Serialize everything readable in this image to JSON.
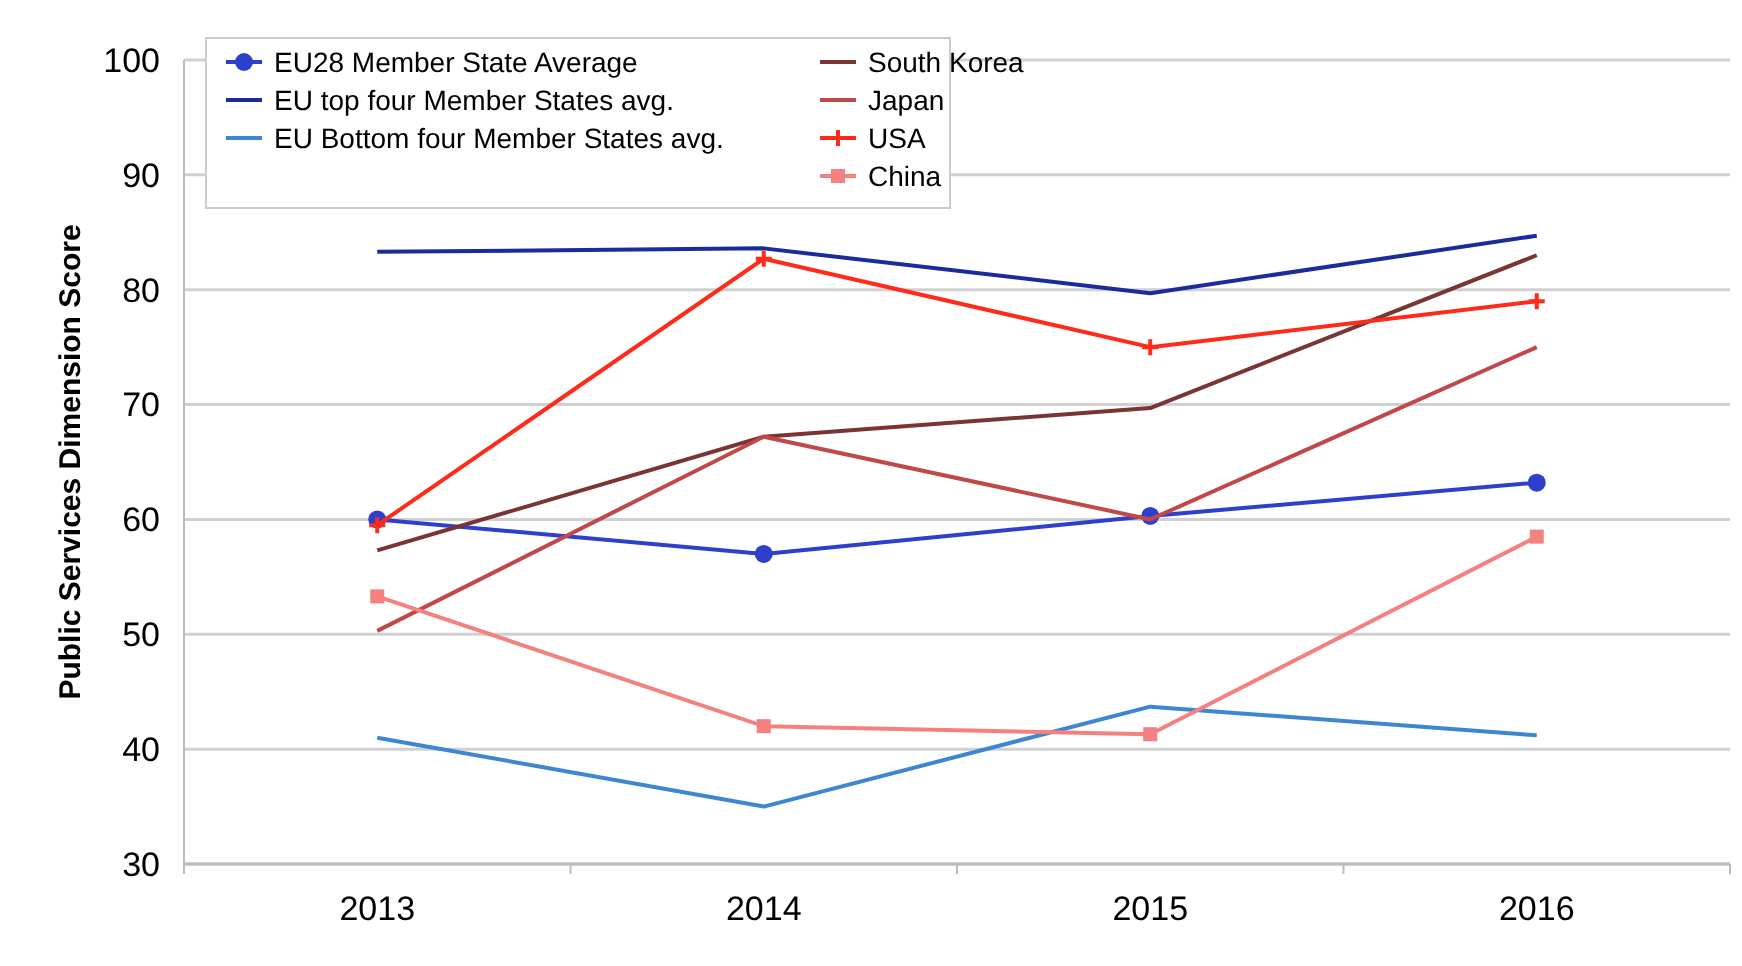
{
  "chart_data": {
    "type": "line",
    "ylabel": "Public Services Dimension Score",
    "categories": [
      "2013",
      "2014",
      "2015",
      "2016"
    ],
    "ylim": [
      30,
      100
    ],
    "yticks": [
      30,
      40,
      50,
      60,
      70,
      80,
      90,
      100
    ],
    "grid": "y",
    "legend": "top left",
    "series": [
      {
        "name": "EU28 Member State Average",
        "color": "#2e3fcc",
        "marker": "circle",
        "values": [
          60,
          57,
          60.3,
          63.2
        ]
      },
      {
        "name": "EU top four Member States avg.",
        "color": "#1a2b9c",
        "values": [
          83.3,
          83.6,
          79.7,
          84.7
        ]
      },
      {
        "name": "EU Bottom four Member States avg.",
        "color": "#3f86d0",
        "values": [
          41,
          35,
          43.7,
          41.2
        ]
      },
      {
        "name": "South Korea",
        "color": "#7a3434",
        "values": [
          57.3,
          67.2,
          69.7,
          83
        ]
      },
      {
        "name": "Japan",
        "color": "#c04848",
        "values": [
          50.3,
          67.2,
          60,
          75
        ]
      },
      {
        "name": "USA",
        "color": "#ff2a1a",
        "marker": "cross",
        "values": [
          59.5,
          82.7,
          75,
          79
        ]
      },
      {
        "name": "China",
        "color": "#f58080",
        "marker": "square",
        "values": [
          53.3,
          42,
          41.3,
          58.5
        ]
      }
    ]
  }
}
